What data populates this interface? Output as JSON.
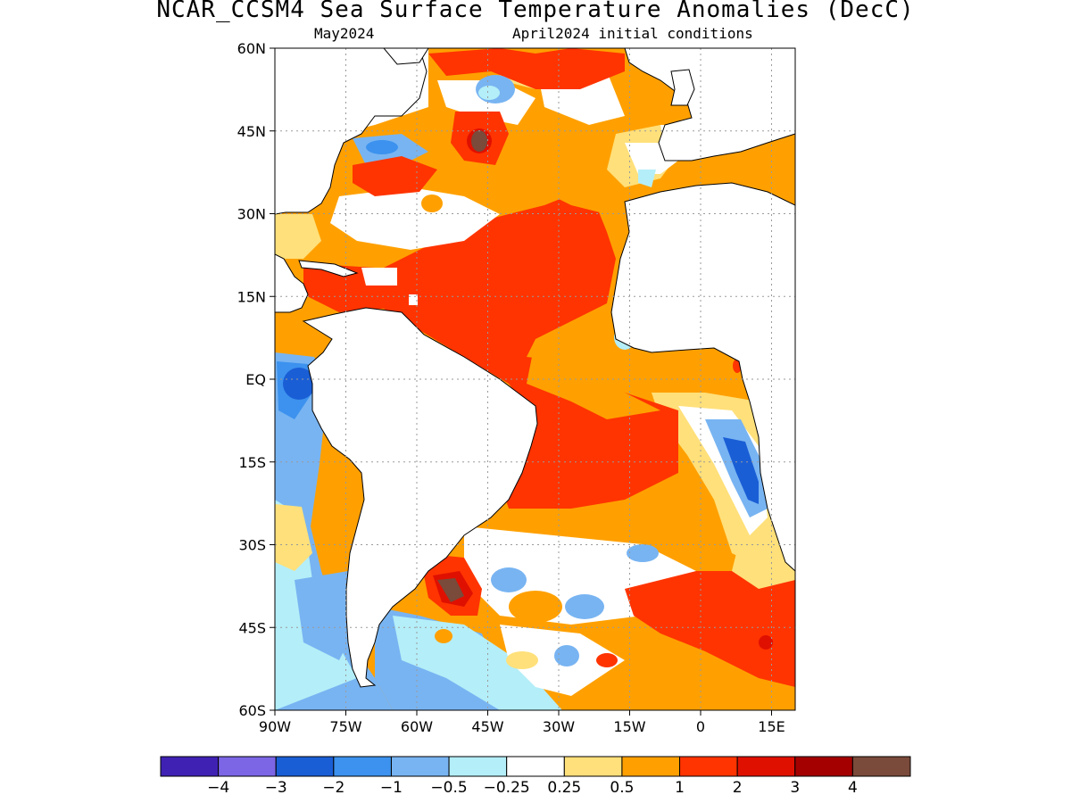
{
  "title": "NCAR_CCSM4 Sea Surface Temperature Anomalies (DecC)",
  "subtitle_left": "May2024",
  "subtitle_right": "April2024 initial conditions",
  "map": {
    "lon_range": [
      -90,
      20
    ],
    "lat_range": [
      -60,
      60
    ],
    "grid": true,
    "lat_ticks": [
      {
        "value": 60,
        "label": "60N"
      },
      {
        "value": 45,
        "label": "45N"
      },
      {
        "value": 30,
        "label": "30N"
      },
      {
        "value": 15,
        "label": "15N"
      },
      {
        "value": 0,
        "label": "EQ"
      },
      {
        "value": -15,
        "label": "15S"
      },
      {
        "value": -30,
        "label": "30S"
      },
      {
        "value": -45,
        "label": "45S"
      },
      {
        "value": -60,
        "label": "60S"
      }
    ],
    "lon_ticks": [
      {
        "value": -90,
        "label": "90W"
      },
      {
        "value": -75,
        "label": "75W"
      },
      {
        "value": -60,
        "label": "60W"
      },
      {
        "value": -45,
        "label": "45W"
      },
      {
        "value": -30,
        "label": "30W"
      },
      {
        "value": -15,
        "label": "15W"
      },
      {
        "value": 0,
        "label": "0"
      },
      {
        "value": 15,
        "label": "15E"
      }
    ]
  },
  "colorbar": {
    "colors": [
      "#3f22b4",
      "#7c66e6",
      "#1a5ed6",
      "#3c92ee",
      "#78b4f2",
      "#b4eef8",
      "#ffffff",
      "#ffe07a",
      "#ffa000",
      "#ff3400",
      "#e01000",
      "#a40000",
      "#7a4a3a"
    ],
    "labels": [
      "−4",
      "−3",
      "−2",
      "−1",
      "−0.5",
      "−0.25",
      "0.25",
      "0.5",
      "1",
      "2",
      "3",
      "4"
    ]
  }
}
